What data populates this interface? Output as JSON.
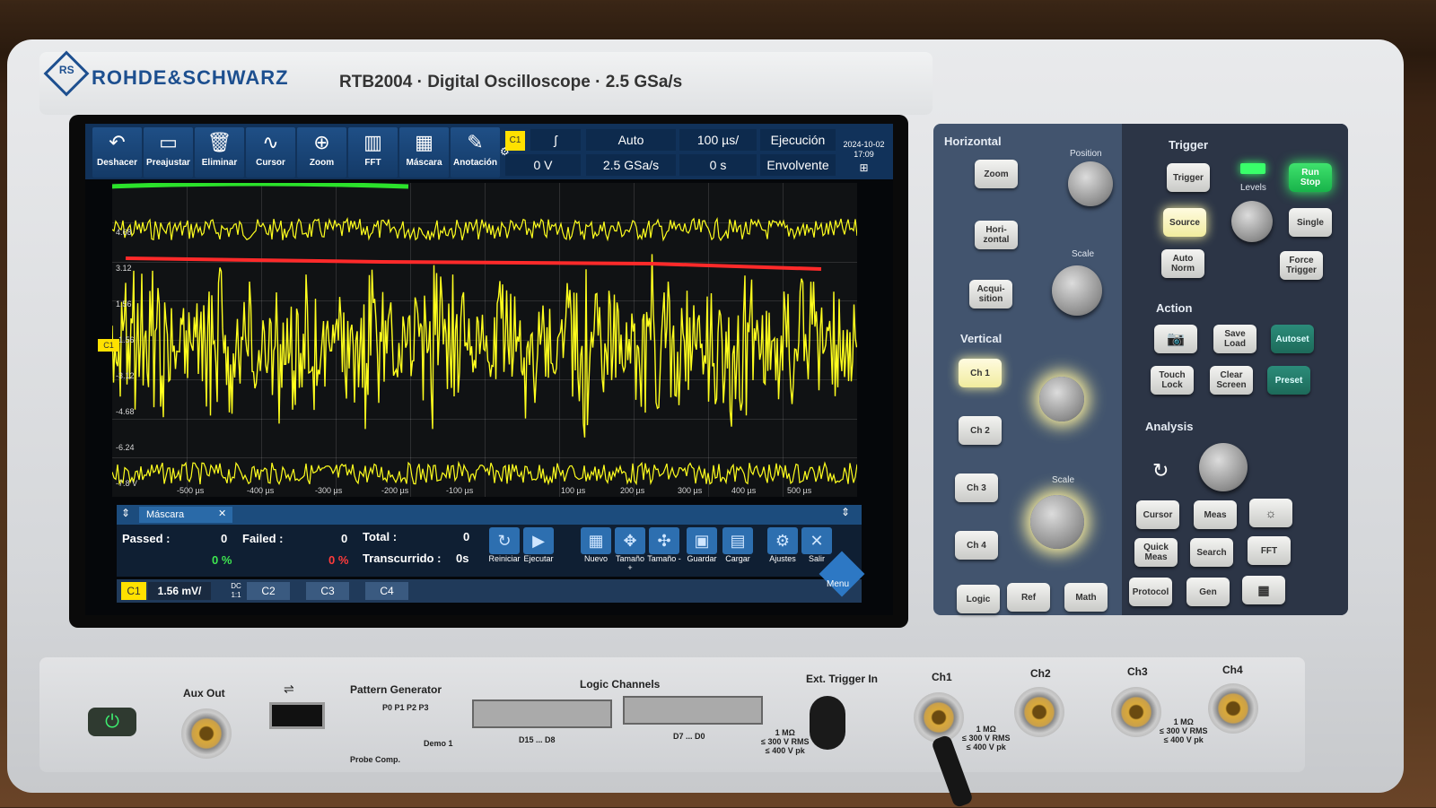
{
  "header": {
    "brand": "ROHDE&SCHWARZ",
    "model": "RTB2004 · Digital Oscilloscope · 2.5 GSa/s"
  },
  "toolbar": {
    "buttons": [
      {
        "label": "Deshacer",
        "icon": "undo-icon",
        "glyph": "↶"
      },
      {
        "label": "Preajustar",
        "icon": "preset-icon",
        "glyph": "▭"
      },
      {
        "label": "Eliminar",
        "icon": "trash-icon",
        "glyph": "🗑"
      },
      {
        "label": "Cursor",
        "icon": "cursor-icon",
        "glyph": "∿"
      },
      {
        "label": "Zoom",
        "icon": "zoom-icon",
        "glyph": "⊕"
      },
      {
        "label": "FFT",
        "icon": "fft-icon",
        "glyph": "▥"
      },
      {
        "label": "Máscara",
        "icon": "mask-icon",
        "glyph": "▦"
      },
      {
        "label": "Anotación",
        "icon": "pencil-icon",
        "glyph": "✎"
      }
    ],
    "trigger_channel": "C1",
    "trigger_slope": "ʃ",
    "trigger_level": "0 V",
    "trigger_mode": "Auto",
    "sample_rate": "2.5 GSa/s",
    "timebase": "100 µs/",
    "time_offset": "0 s",
    "acq_state": "Ejecución",
    "acq_mode": "Envolvente",
    "date": "2024-10-02",
    "time": "17:09"
  },
  "plot": {
    "channel_marker": "C1",
    "y_labels": [
      "4.68",
      "3.12",
      "1.56",
      "-1.56",
      "-3.12",
      "-4.68",
      "-6.24",
      "-7.8 V"
    ],
    "x_labels": [
      "-500 µs",
      "-400 µs",
      "-300 µs",
      "-200 µs",
      "-100 µs",
      "100 µs",
      "200 µs",
      "300 µs",
      "400 µs",
      "500 µs"
    ],
    "trace_color": "#ffff1e",
    "mask_upper_color": "#2be22b",
    "mask_lower_color": "#ff2a2a"
  },
  "mask": {
    "tab_label": "Máscara",
    "passed_label": "Passed :",
    "passed_count": "0",
    "passed_pct": "0 %",
    "failed_label": "Failed :",
    "failed_count": "0",
    "failed_pct": "0 %",
    "total_label": "Total :",
    "total_count": "0",
    "elapsed_label": "Transcurrido :",
    "elapsed_value": "0s",
    "actions": [
      {
        "label": "Reiniciar",
        "icon": "reset-icon",
        "glyph": "↻"
      },
      {
        "label": "Ejecutar",
        "icon": "play-icon",
        "glyph": "▶"
      },
      {
        "label": "Nuevo",
        "icon": "new-mask-icon",
        "glyph": "▦"
      },
      {
        "label": "Tamaño +",
        "icon": "grow-icon",
        "glyph": "✥"
      },
      {
        "label": "Tamaño -",
        "icon": "shrink-icon",
        "glyph": "✣"
      },
      {
        "label": "Guardar",
        "icon": "save-icon",
        "glyph": "▣"
      },
      {
        "label": "Cargar",
        "icon": "folder-icon",
        "glyph": "▤"
      },
      {
        "label": "Ajustes",
        "icon": "gear-icon",
        "glyph": "⚙"
      },
      {
        "label": "Salir",
        "icon": "close-icon",
        "glyph": "✕"
      }
    ]
  },
  "channel_bar": {
    "c1": "C1",
    "c1_scale": "1.56 mV/",
    "c1_coupling": "DC",
    "c1_probe": "1:1",
    "c2": "C2",
    "c3": "C3",
    "c4": "C4",
    "menu": "Menu"
  },
  "panel": {
    "horizontal": "Horizontal",
    "position": "Position",
    "scale": "Scale",
    "zoom": "Zoom",
    "horizontal_key": "Hori-\nzontal",
    "acquisition": "Acqui-\nsition",
    "vertical": "Vertical",
    "ch1": "Ch 1",
    "ch2": "Ch 2",
    "ch3": "Ch 3",
    "ch4": "Ch 4",
    "logic": "Logic",
    "ref": "Ref",
    "math": "Math",
    "trigger": "Trigger",
    "trigger_key": "Trigger",
    "levels": "Levels",
    "run_stop": "Run\nStop",
    "source": "Source",
    "single": "Single",
    "auto_norm": "Auto\nNorm",
    "force_trigger": "Force\nTrigger",
    "action": "Action",
    "save_load": "Save\nLoad",
    "autoset": "Autoset",
    "touch_lock": "Touch\nLock",
    "clear_screen": "Clear\nScreen",
    "preset": "Preset",
    "analysis": "Analysis",
    "cursor": "Cursor",
    "meas": "Meas",
    "quick_meas": "Quick\nMeas",
    "search": "Search",
    "fft": "FFT",
    "protocol": "Protocol",
    "gen": "Gen"
  },
  "front": {
    "aux_out": "Aux Out",
    "pattern_generator": "Pattern Generator",
    "p_labels": "P0  P1  P2  P3",
    "probe_comp": "Probe Comp.",
    "demo": "Demo 1",
    "logic_channels": "Logic Channels",
    "d15_d8": "D15 ... D8",
    "d7_d0": "D7 ... D0",
    "ext_trigger_in": "Ext. Trigger In",
    "ext_spec": "1 MΩ\n≤ 300 V RMS\n≤ 400 V pk",
    "ch1": "Ch1",
    "ch2": "Ch2",
    "ch3": "Ch3",
    "ch4": "Ch4",
    "ch_spec": "1 MΩ\n≤ 300 V RMS\n≤ 400 V pk"
  }
}
